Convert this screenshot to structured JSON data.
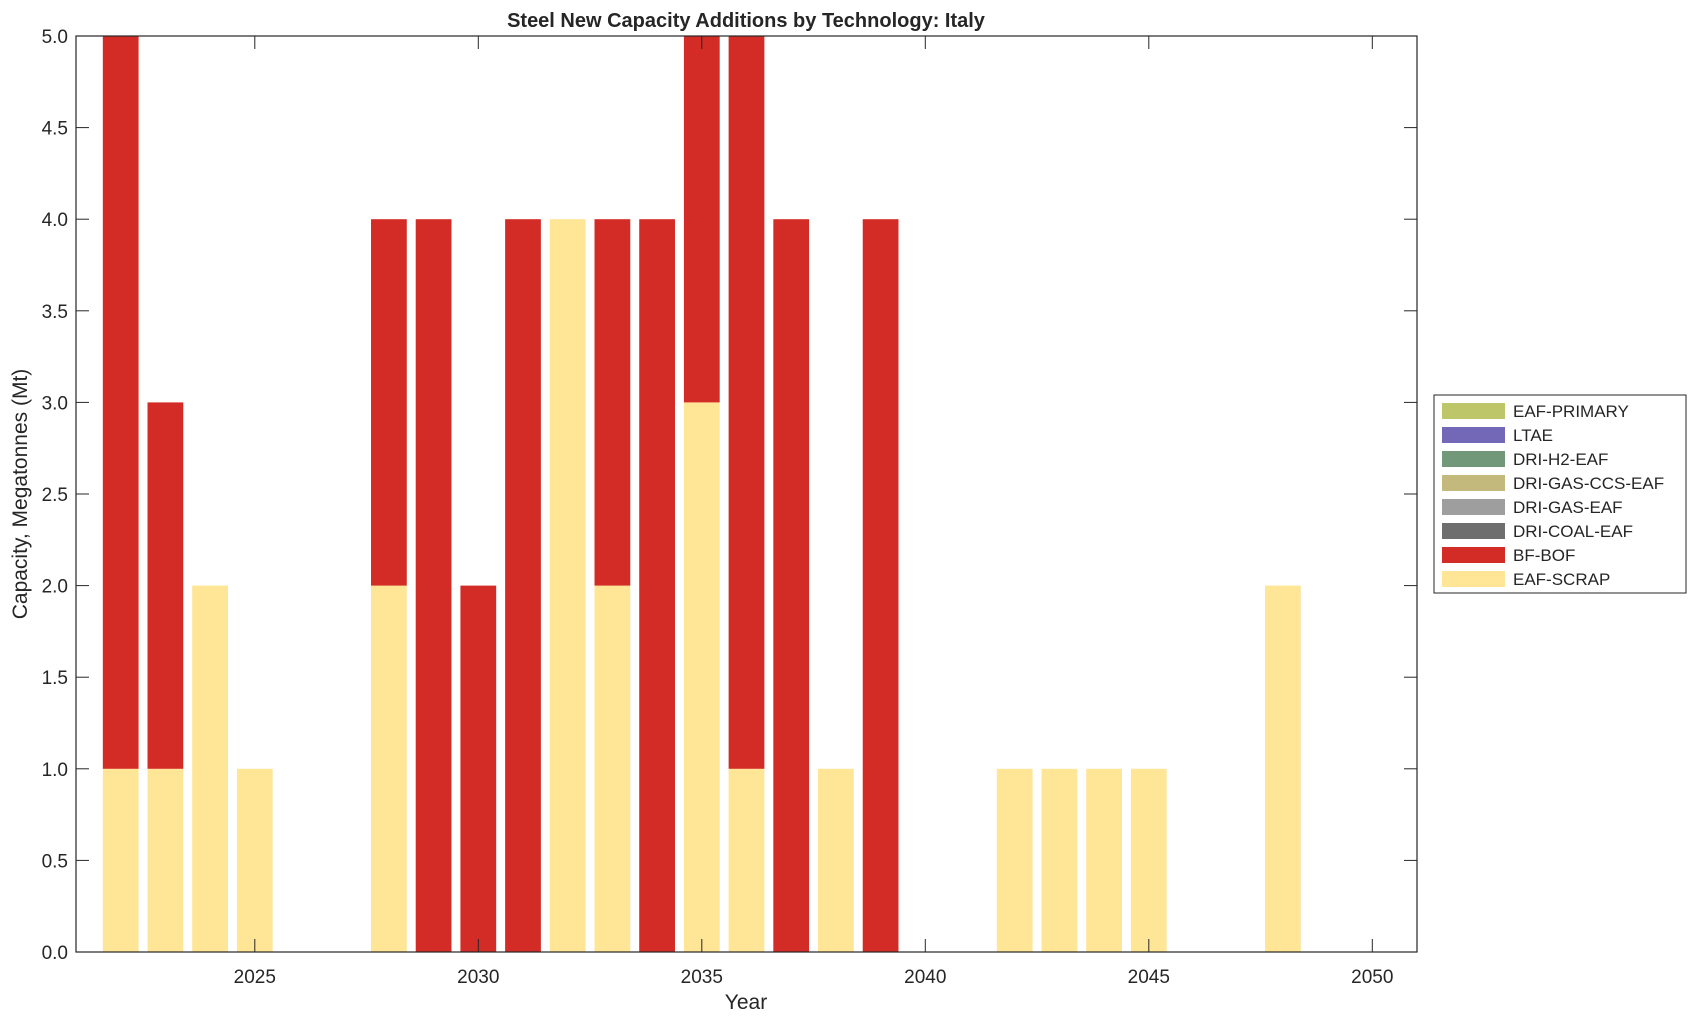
{
  "chart_data": {
    "type": "bar",
    "stacked": true,
    "title": "Steel New Capacity Additions by Technology: Italy",
    "xlabel": "Year",
    "ylabel": "Capacity, Megatonnes (Mt)",
    "xlim": [
      2021,
      2051
    ],
    "ylim": [
      0,
      5
    ],
    "xticks": [
      2025,
      2030,
      2035,
      2040,
      2045,
      2050
    ],
    "yticks": [
      "0.0",
      "0.5",
      "1.0",
      "1.5",
      "2.0",
      "2.5",
      "3.0",
      "3.5",
      "4.0",
      "4.5",
      "5.0"
    ],
    "grid": false,
    "legend_position": "right",
    "x": [
      2022,
      2023,
      2024,
      2025,
      2026,
      2027,
      2028,
      2029,
      2030,
      2031,
      2032,
      2033,
      2034,
      2035,
      2036,
      2037,
      2038,
      2039,
      2040,
      2041,
      2042,
      2043,
      2044,
      2045,
      2046,
      2047,
      2048,
      2049,
      2050
    ],
    "series": [
      {
        "name": "EAF-SCRAP",
        "color": "#FFE596",
        "values": [
          1,
          1,
          2,
          1,
          0,
          0,
          2,
          0,
          0,
          0,
          4,
          2,
          0,
          3,
          1,
          0,
          1,
          0,
          0,
          0,
          1,
          1,
          1,
          1,
          0,
          0,
          2,
          0,
          0
        ]
      },
      {
        "name": "BF-BOF",
        "color": "#D32B26",
        "values": [
          4,
          2,
          0,
          0,
          0,
          0,
          2,
          4,
          2,
          4,
          0,
          2,
          4,
          2,
          4,
          4,
          0,
          4,
          0,
          0,
          0,
          0,
          0,
          0,
          0,
          0,
          0,
          0,
          0
        ]
      },
      {
        "name": "DRI-COAL-EAF",
        "color": "#6E6E6E",
        "values": [
          0,
          0,
          0,
          0,
          0,
          0,
          0,
          0,
          0,
          0,
          0,
          0,
          0,
          0,
          0,
          0,
          0,
          0,
          0,
          0,
          0,
          0,
          0,
          0,
          0,
          0,
          0,
          0,
          0
        ]
      },
      {
        "name": "DRI-GAS-EAF",
        "color": "#9E9E9E",
        "values": [
          0,
          0,
          0,
          0,
          0,
          0,
          0,
          0,
          0,
          0,
          0,
          0,
          0,
          0,
          0,
          0,
          0,
          0,
          0,
          0,
          0,
          0,
          0,
          0,
          0,
          0,
          0,
          0,
          0
        ]
      },
      {
        "name": "DRI-GAS-CCS-EAF",
        "color": "#C4B97C",
        "values": [
          0,
          0,
          0,
          0,
          0,
          0,
          0,
          0,
          0,
          0,
          0,
          0,
          0,
          0,
          0,
          0,
          0,
          0,
          0,
          0,
          0,
          0,
          0,
          0,
          0,
          0,
          0,
          0,
          0
        ]
      },
      {
        "name": "DRI-H2-EAF",
        "color": "#72987A",
        "values": [
          0,
          0,
          0,
          0,
          0,
          0,
          0,
          0,
          0,
          0,
          0,
          0,
          0,
          0,
          0,
          0,
          0,
          0,
          0,
          0,
          0,
          0,
          0,
          0,
          0,
          0,
          0,
          0,
          0
        ]
      },
      {
        "name": "LTAE",
        "color": "#7268B7",
        "values": [
          0,
          0,
          0,
          0,
          0,
          0,
          0,
          0,
          0,
          0,
          0,
          0,
          0,
          0,
          0,
          0,
          0,
          0,
          0,
          0,
          0,
          0,
          0,
          0,
          0,
          0,
          0,
          0,
          0
        ]
      },
      {
        "name": "EAF-PRIMARY",
        "color": "#BDC76A",
        "values": [
          0,
          0,
          0,
          0,
          0,
          0,
          0,
          0,
          0,
          0,
          0,
          0,
          0,
          0,
          0,
          0,
          0,
          0,
          0,
          0,
          0,
          0,
          0,
          0,
          0,
          0,
          0,
          0,
          0
        ]
      }
    ],
    "legend_order": [
      "EAF-PRIMARY",
      "LTAE",
      "DRI-H2-EAF",
      "DRI-GAS-CCS-EAF",
      "DRI-GAS-EAF",
      "DRI-COAL-EAF",
      "BF-BOF",
      "EAF-SCRAP"
    ]
  }
}
